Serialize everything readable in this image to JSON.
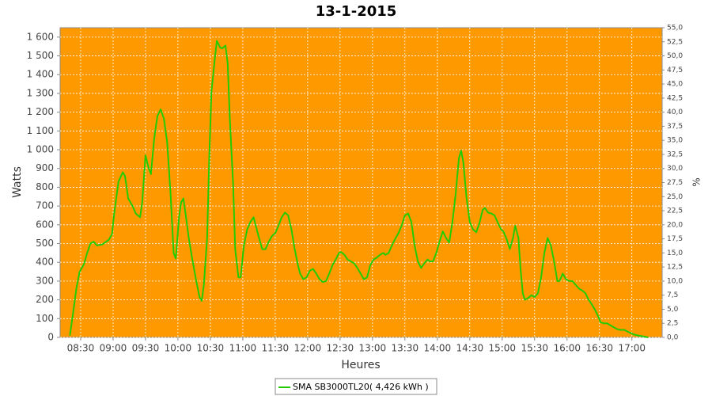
{
  "chart_data": {
    "type": "line",
    "title": "13-1-2015",
    "x_label": "Heures",
    "y_label": "Watts",
    "y2_label": "%",
    "background": "#ff9900",
    "grid": true,
    "xlim": [
      "08:11",
      "17:28"
    ],
    "xticks": [
      "08:30",
      "09:00",
      "09:30",
      "10:00",
      "10:30",
      "11:00",
      "11:30",
      "12:00",
      "12:30",
      "13:00",
      "13:30",
      "14:00",
      "14:30",
      "15:00",
      "15:30",
      "16:00",
      "16:30",
      "17:00"
    ],
    "ylim": [
      0,
      1650
    ],
    "yticks": [
      0,
      100,
      200,
      300,
      400,
      500,
      600,
      700,
      800,
      900,
      {
        "value": 1000,
        "label": "1 000"
      },
      {
        "value": 1100,
        "label": "1 100"
      },
      {
        "value": 1200,
        "label": "1 200"
      },
      {
        "value": 1300,
        "label": "1 300"
      },
      {
        "value": 1400,
        "label": "1 400"
      },
      {
        "value": 1500,
        "label": "1 500"
      },
      {
        "value": 1600,
        "label": "1 600"
      }
    ],
    "y2lim": [
      0,
      55
    ],
    "y2ticks": [
      {
        "value": 0,
        "label": "0,0"
      },
      {
        "value": 2.5,
        "label": "2,5"
      },
      {
        "value": 5,
        "label": "5,0"
      },
      {
        "value": 7.5,
        "label": "7,5"
      },
      {
        "value": 10,
        "label": "10,0"
      },
      {
        "value": 12.5,
        "label": "12,5"
      },
      {
        "value": 15,
        "label": "15,0"
      },
      {
        "value": 17.5,
        "label": "17,5"
      },
      {
        "value": 20,
        "label": "20,0"
      },
      {
        "value": 22.5,
        "label": "22,5"
      },
      {
        "value": 25,
        "label": "25,0"
      },
      {
        "value": 27.5,
        "label": "27,5"
      },
      {
        "value": 30,
        "label": "30,0"
      },
      {
        "value": 32.5,
        "label": "32,5"
      },
      {
        "value": 35,
        "label": "35,0"
      },
      {
        "value": 37.5,
        "label": "37,5"
      },
      {
        "value": 40,
        "label": "40,0"
      },
      {
        "value": 42.5,
        "label": "42,5"
      },
      {
        "value": 45,
        "label": "45,0"
      },
      {
        "value": 47.5,
        "label": "47,5"
      },
      {
        "value": 50,
        "label": "50,0"
      },
      {
        "value": 52.5,
        "label": "52,5"
      },
      {
        "value": 55,
        "label": "55,0"
      }
    ],
    "x": [
      "08:20",
      "08:23",
      "08:26",
      "08:29",
      "08:33",
      "08:36",
      "08:39",
      "08:42",
      "08:45",
      "08:50",
      "08:56",
      "08:59",
      "09:01",
      "09:05",
      "09:09",
      "09:11",
      "09:14",
      "09:18",
      "09:21",
      "09:25",
      "09:27",
      "09:30",
      "09:33",
      "09:35",
      "09:38",
      "09:41",
      "09:44",
      "09:47",
      "09:50",
      "09:53",
      "09:56",
      "09:58",
      "10:01",
      "10:03",
      "10:05",
      "10:07",
      "10:10",
      "10:13",
      "10:17",
      "10:20",
      "10:22",
      "10:24",
      "10:27",
      "10:29",
      "10:31",
      "10:34",
      "10:36",
      "10:39",
      "10:41",
      "10:44",
      "10:46",
      "10:48",
      "10:51",
      "10:53",
      "10:56",
      "10:58",
      "11:01",
      "11:04",
      "11:07",
      "11:10",
      "11:12",
      "11:15",
      "11:18",
      "11:21",
      "11:24",
      "11:27",
      "11:30",
      "11:33",
      "11:36",
      "11:39",
      "11:42",
      "11:45",
      "11:48",
      "11:51",
      "11:53",
      "11:56",
      "11:59",
      "12:02",
      "12:05",
      "12:08",
      "12:11",
      "12:14",
      "12:17",
      "12:20",
      "12:23",
      "12:26",
      "12:29",
      "12:31",
      "12:34",
      "12:37",
      "12:40",
      "12:43",
      "12:46",
      "12:49",
      "12:52",
      "12:55",
      "12:58",
      "13:01",
      "13:04",
      "13:07",
      "13:10",
      "13:12",
      "13:15",
      "13:18",
      "13:21",
      "13:24",
      "13:27",
      "13:30",
      "13:33",
      "13:36",
      "13:39",
      "13:42",
      "13:45",
      "13:48",
      "13:51",
      "13:53",
      "13:56",
      "13:59",
      "14:02",
      "14:05",
      "14:08",
      "14:11",
      "14:14",
      "14:17",
      "14:20",
      "14:22",
      "14:24",
      "14:27",
      "14:30",
      "14:33",
      "14:36",
      "14:39",
      "14:42",
      "14:44",
      "14:47",
      "14:50",
      "14:53",
      "14:56",
      "14:59",
      "15:01",
      "15:04",
      "15:07",
      "15:10",
      "15:12",
      "15:15",
      "15:17",
      "15:19",
      "15:21",
      "15:24",
      "15:27",
      "15:30",
      "15:33",
      "15:36",
      "15:39",
      "15:42",
      "15:45",
      "15:48",
      "15:51",
      "15:53",
      "15:56",
      "15:59",
      "16:02",
      "16:05",
      "16:08",
      "16:11",
      "16:14",
      "16:17",
      "16:20",
      "16:23",
      "16:26",
      "16:29",
      "16:31",
      "16:34",
      "16:37",
      "16:40",
      "16:43",
      "16:46",
      "16:49",
      "16:53",
      "16:58",
      "17:02",
      "17:06",
      "17:11",
      "17:15"
    ],
    "series": [
      {
        "name": "SMA SB3000TL20( 4,426 kWh )",
        "color": "#22cc00",
        "values": [
          10,
          130,
          260,
          350,
          390,
          450,
          500,
          510,
          490,
          495,
          520,
          550,
          660,
          830,
          880,
          860,
          740,
          700,
          660,
          640,
          720,
          970,
          900,
          870,
          1060,
          1180,
          1215,
          1165,
          1040,
          780,
          450,
          420,
          640,
          720,
          740,
          660,
          530,
          425,
          300,
          215,
          195,
          280,
          530,
          955,
          1310,
          1480,
          1580,
          1545,
          1540,
          1555,
          1460,
          1165,
          825,
          470,
          320,
          320,
          490,
          575,
          615,
          640,
          595,
          530,
          470,
          470,
          510,
          540,
          555,
          595,
          640,
          665,
          650,
          575,
          470,
          385,
          340,
          310,
          320,
          355,
          365,
          340,
          310,
          295,
          300,
          340,
          385,
          415,
          450,
          455,
          440,
          415,
          405,
          395,
          370,
          340,
          310,
          320,
          385,
          415,
          425,
          440,
          450,
          440,
          450,
          490,
          525,
          555,
          595,
          650,
          660,
          615,
          490,
          405,
          370,
          395,
          415,
          405,
          405,
          450,
          510,
          565,
          530,
          505,
          615,
          765,
          955,
          995,
          935,
          745,
          615,
          575,
          560,
          610,
          680,
          690,
          665,
          660,
          650,
          610,
          575,
          565,
          525,
          470,
          530,
          595,
          530,
          365,
          235,
          200,
          210,
          225,
          215,
          235,
          320,
          450,
          530,
          490,
          405,
          300,
          300,
          340,
          310,
          300,
          300,
          280,
          260,
          250,
          235,
          200,
          175,
          145,
          110,
          80,
          75,
          75,
          65,
          55,
          45,
          40,
          40,
          25,
          15,
          10,
          5,
          0
        ]
      }
    ]
  }
}
